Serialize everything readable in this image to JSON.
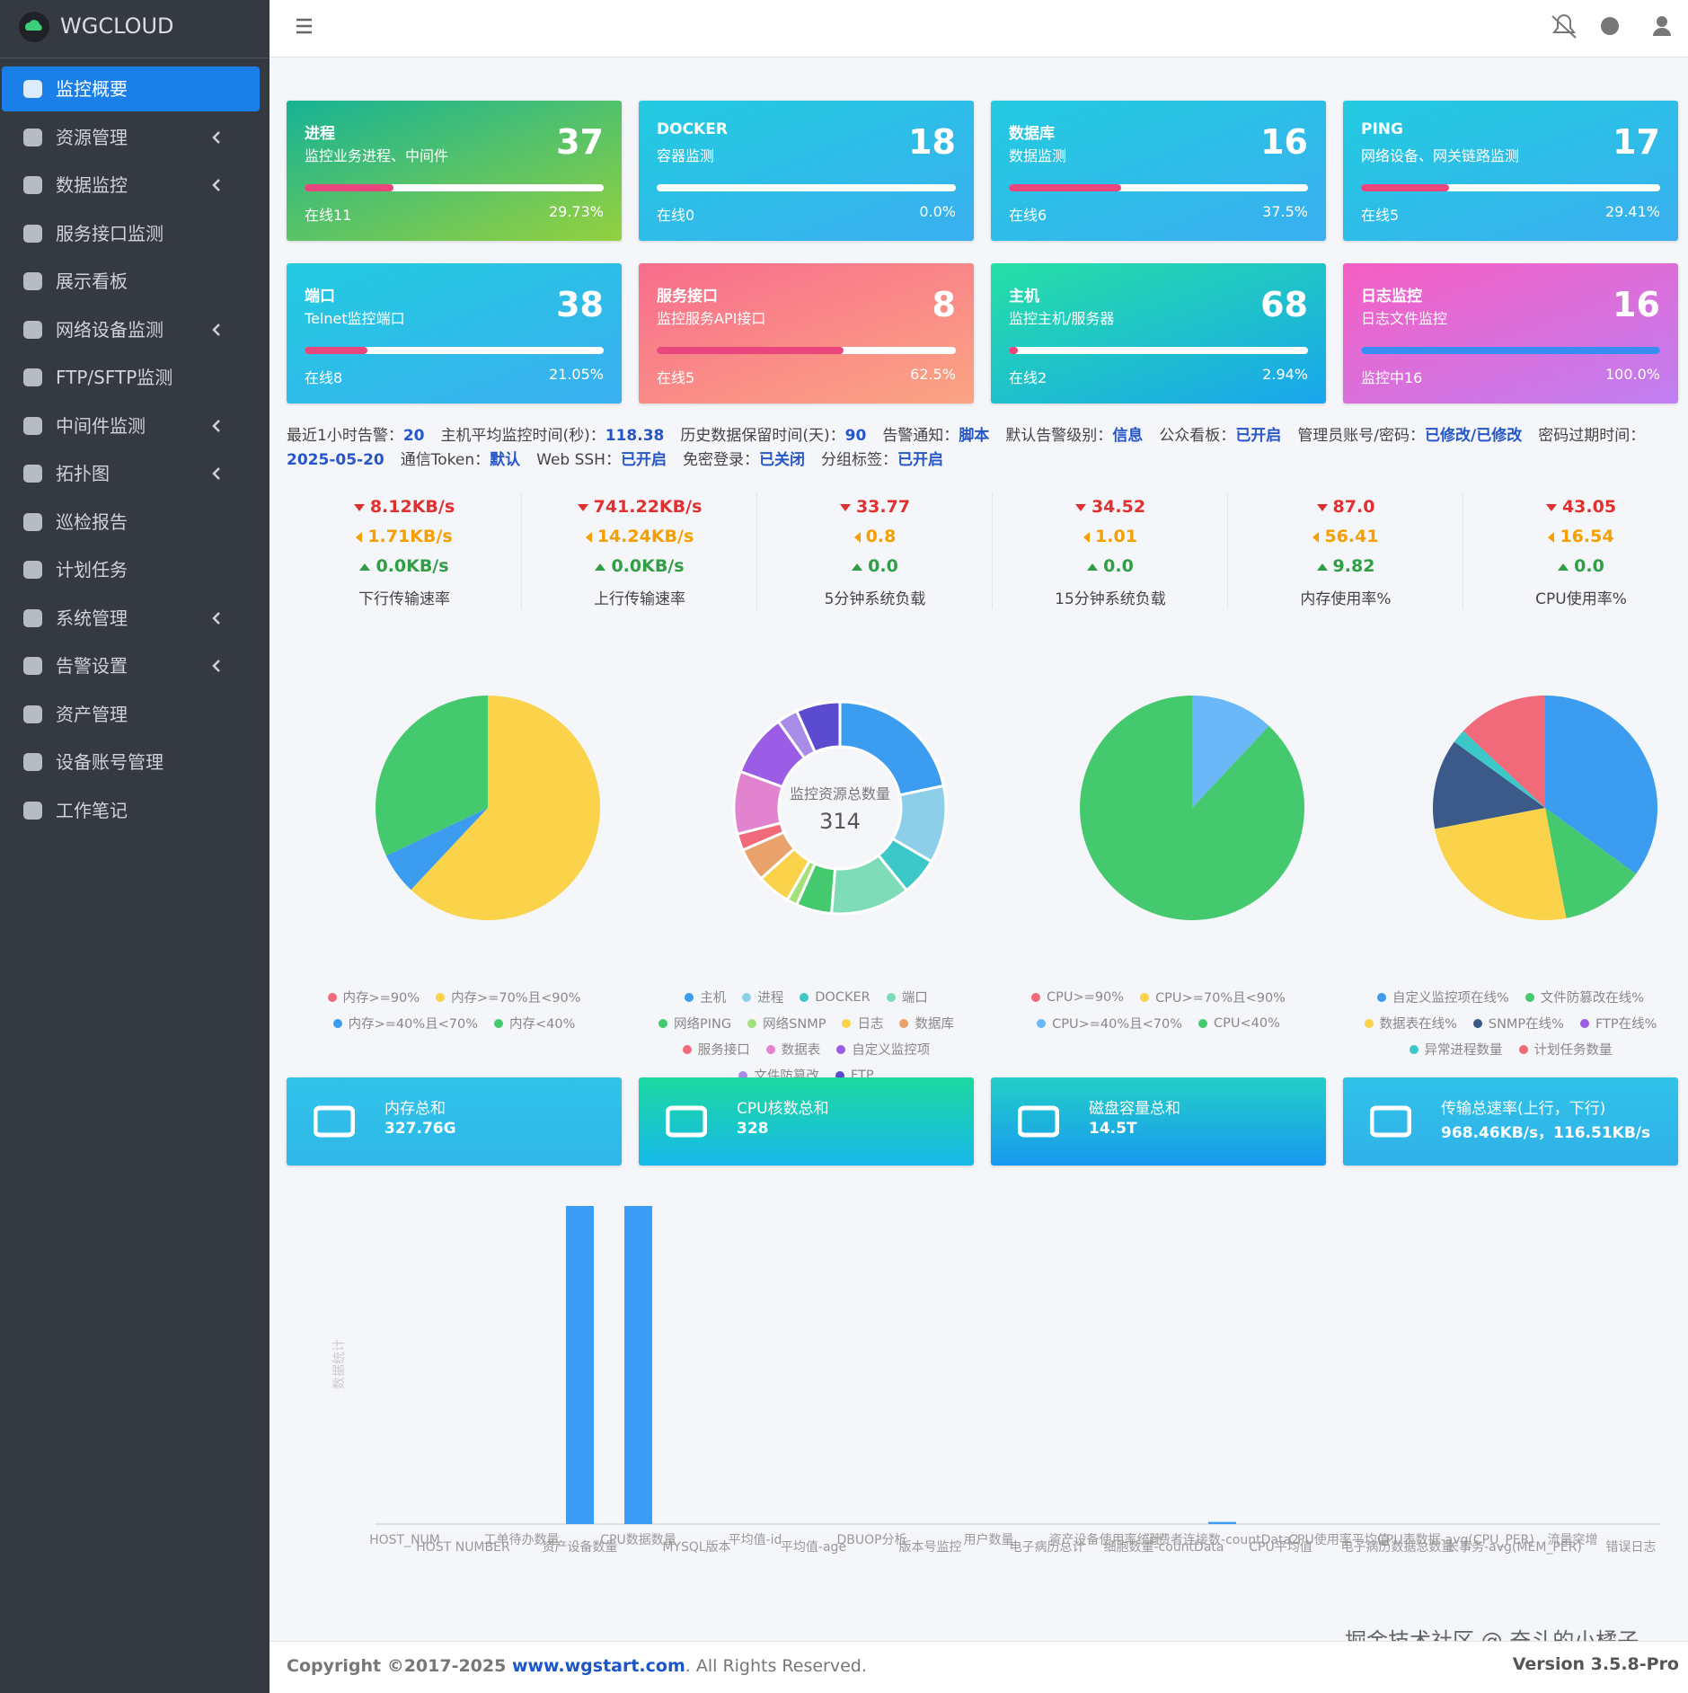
{
  "sidebar": {
    "brand": "WGCLOUD",
    "menu": [
      {
        "label": "监控概要",
        "active": true,
        "expandable": false
      },
      {
        "label": "资源管理",
        "active": false,
        "expandable": true
      },
      {
        "label": "数据监控",
        "active": false,
        "expandable": true
      },
      {
        "label": "服务接口监测",
        "active": false,
        "expandable": false
      },
      {
        "label": "展示看板",
        "active": false,
        "expandable": false
      },
      {
        "label": "网络设备监测",
        "active": false,
        "expandable": true
      },
      {
        "label": "FTP/SFTP监测",
        "active": false,
        "expandable": false
      },
      {
        "label": "中间件监测",
        "active": false,
        "expandable": true
      },
      {
        "label": "拓扑图",
        "active": false,
        "expandable": true
      },
      {
        "label": "巡检报告",
        "active": false,
        "expandable": false
      },
      {
        "label": "计划任务",
        "active": false,
        "expandable": false
      },
      {
        "label": "系统管理",
        "active": false,
        "expandable": true
      },
      {
        "label": "告警设置",
        "active": false,
        "expandable": true
      },
      {
        "label": "资产管理",
        "active": false,
        "expandable": false
      },
      {
        "label": "设备账号管理",
        "active": false,
        "expandable": false
      },
      {
        "label": "工作笔记",
        "active": false,
        "expandable": false
      }
    ]
  },
  "stat_cards": [
    {
      "title": "进程",
      "subtitle": "监控业务进程、中间件",
      "count": 37,
      "online": "在线11",
      "percent": 29.73,
      "percent_label": "29.73%",
      "colors": [
        "#16b394",
        "#94d13f"
      ],
      "bar_color": "#e8467c"
    },
    {
      "title": "DOCKER",
      "subtitle": "容器监测",
      "count": 18,
      "online": "在线0",
      "percent": 0,
      "percent_label": "0.0%",
      "colors": [
        "#22cbe0",
        "#3aaff0"
      ],
      "bar_color": "#e8467c"
    },
    {
      "title": "数据库",
      "subtitle": "数据监测",
      "count": 16,
      "online": "在线6",
      "percent": 37.5,
      "percent_label": "37.5%",
      "colors": [
        "#22cbe0",
        "#3aaff0"
      ],
      "bar_color": "#e8467c"
    },
    {
      "title": "PING",
      "subtitle": "网络设备、网关链路监测",
      "count": 17,
      "online": "在线5",
      "percent": 29.41,
      "percent_label": "29.41%",
      "colors": [
        "#22cbe0",
        "#3aaff0"
      ],
      "bar_color": "#e8467c"
    },
    {
      "title": "端口",
      "subtitle": "Telnet监控端口",
      "count": 38,
      "online": "在线8",
      "percent": 21.05,
      "percent_label": "21.05%",
      "colors": [
        "#22cbe0",
        "#3aaff0"
      ],
      "bar_color": "#e8467c"
    },
    {
      "title": "服务接口",
      "subtitle": "监控服务API接口",
      "count": 8,
      "online": "在线5",
      "percent": 62.5,
      "percent_label": "62.5%",
      "colors": [
        "#f86d8c",
        "#fba583"
      ],
      "bar_color": "#e8467c"
    },
    {
      "title": "主机",
      "subtitle": "监控主机/服务器",
      "count": 68,
      "online": "在线2",
      "percent": 2.94,
      "percent_label": "2.94%",
      "colors": [
        "#25e0a5",
        "#19a5ee"
      ],
      "bar_color": "#e8467c"
    },
    {
      "title": "日志监控",
      "subtitle": "日志文件监控",
      "count": 16,
      "online": "监控中16",
      "percent": 100,
      "percent_label": "100.0%",
      "colors": [
        "#f65ec3",
        "#c07ff2"
      ],
      "bar_color": "#3a8df0"
    }
  ],
  "status_line": [
    {
      "label": "最近1小时告警：",
      "value": 20
    },
    {
      "label": "主机平均监控时间(秒)：",
      "value": 118.38
    },
    {
      "label": "历史数据保留时间(天)：",
      "value": 90
    },
    {
      "label": "告警通知：",
      "value": "脚本"
    },
    {
      "label": "默认告警级别：",
      "value": "信息"
    },
    {
      "label": "公众看板：",
      "value": "已开启"
    },
    {
      "label": "管理员账号/密码：",
      "value": "已修改/已修改"
    },
    {
      "label": "密码过期时间：",
      "value": "2025-05-20"
    },
    {
      "label": "通信Token：",
      "value": "默认"
    },
    {
      "label": "Web SSH：",
      "value": "已开启"
    },
    {
      "label": "免密登录：",
      "value": "已关闭"
    },
    {
      "label": "分组标签：",
      "value": "已开启"
    }
  ],
  "metrics": [
    {
      "down": "8.12KB/s",
      "mid": "1.71KB/s",
      "up": "0.0KB/s",
      "label": "下行传输速率"
    },
    {
      "down": "741.22KB/s",
      "mid": "14.24KB/s",
      "up": "0.0KB/s",
      "label": "上行传输速率"
    },
    {
      "down": "33.77",
      "mid": "0.8",
      "up": "0.0",
      "label": "5分钟系统负载"
    },
    {
      "down": "34.52",
      "mid": "1.01",
      "up": "0.0",
      "label": "15分钟系统负载"
    },
    {
      "down": "87.0",
      "mid": "56.41",
      "up": "9.82",
      "label": "内存使用率%"
    },
    {
      "down": "43.05",
      "mid": "16.54",
      "up": "0.0",
      "label": "CPU使用率%"
    }
  ],
  "chart_data": [
    {
      "type": "pie",
      "categories": [
        "内存>=90%",
        "内存>=70%且<90%",
        "内存>=40%且<70%",
        "内存<40%"
      ],
      "values": [
        0,
        62,
        6,
        32
      ],
      "colors": [
        "#f06a7a",
        "#fad34a",
        "#3b9cf0",
        "#45c96e"
      ]
    },
    {
      "type": "donut",
      "center_title": "监控资源总数量",
      "center_value": 314,
      "categories": [
        "主机",
        "进程",
        "DOCKER",
        "端口",
        "网络PING",
        "网络SNMP",
        "日志",
        "数据库",
        "服务接口",
        "数据表",
        "自定义监控项",
        "文件防篡改",
        "FTP"
      ],
      "values": [
        68,
        37,
        18,
        38,
        17,
        5,
        16,
        16,
        8,
        30,
        30,
        10,
        21
      ],
      "colors": [
        "#3b9cf0",
        "#8dcfe8",
        "#3cc8c8",
        "#7fdcb8",
        "#45c96e",
        "#a4e07a",
        "#fad34a",
        "#e9a26b",
        "#f06a7a",
        "#e283d0",
        "#9b5de5",
        "#a98be8",
        "#5b4bd0"
      ]
    },
    {
      "type": "pie",
      "categories": [
        "CPU>=90%",
        "CPU>=70%且<90%",
        "CPU>=40%且<70%",
        "CPU<40%"
      ],
      "values": [
        0,
        0,
        12,
        88
      ],
      "colors": [
        "#f06a7a",
        "#fad34a",
        "#6ab8f7",
        "#45c96e"
      ]
    },
    {
      "type": "pie",
      "categories": [
        "自定义监控项在线%",
        "文件防篡改在线%",
        "数据表在线%",
        "SNMP在线%",
        "FTP在线%",
        "异常进程数量",
        "计划任务数量"
      ],
      "values": [
        35,
        12,
        25,
        13,
        0,
        2,
        13
      ],
      "colors": [
        "#3b9cf0",
        "#45c96e",
        "#fad34a",
        "#3b5a8a",
        "#9b5de5",
        "#3cc8c8",
        "#f06a7a"
      ]
    },
    {
      "type": "bar",
      "y_label": "数据统计",
      "color": "#3d9cf5",
      "ylim": [
        0,
        30
      ],
      "categories": [
        "HOST_NUM",
        "HOST NUMBER",
        "工单待办数量",
        "资产设备数量",
        "CPU数据数量",
        "MYSQL版本",
        "平均值-id",
        "平均值-age",
        "DBUOP分析",
        "版本号监控",
        "用户数量",
        "电子病历总计",
        "资产设备使用率统计",
        "细胞数量-countData",
        "消费者连接数-countData2",
        "CPU平均值",
        "CPU使用率平均值",
        "电子病历数据总数量",
        "CPU表数据-avg(CPU_PER)",
        "长事务-avg(MEM_PER)",
        "流量突增",
        "错误日志"
      ],
      "values": [
        0,
        0,
        0,
        30,
        30,
        0,
        0,
        0,
        0,
        0,
        0,
        0,
        0,
        0,
        0.2,
        0,
        0,
        0,
        0,
        0,
        0,
        0
      ]
    }
  ],
  "summary_cards": [
    {
      "label": "内存总和",
      "value": "327.76G",
      "colors": [
        "#31c3ea",
        "#2fb7e8"
      ]
    },
    {
      "label": "CPU核数总和",
      "value": "328",
      "colors": [
        "#1cd9a0",
        "#17b9ea"
      ]
    },
    {
      "label": "磁盘容量总和",
      "value": "14.5T",
      "colors": [
        "#23cfc7",
        "#1899f0"
      ]
    },
    {
      "label": "传输总速率(上行，下行)",
      "value": "968.46KB/s，116.51KB/s",
      "colors": [
        "#31c3ea",
        "#2fb0e8"
      ]
    }
  ],
  "footer": {
    "copyright": "Copyright ©2017-2025 ",
    "link": "www.wgstart.com",
    "rights": ". All Rights Reserved.",
    "version": "Version 3.5.8-Pro"
  },
  "watermark": "掘金技术社区 @ 奋斗的小橘子"
}
